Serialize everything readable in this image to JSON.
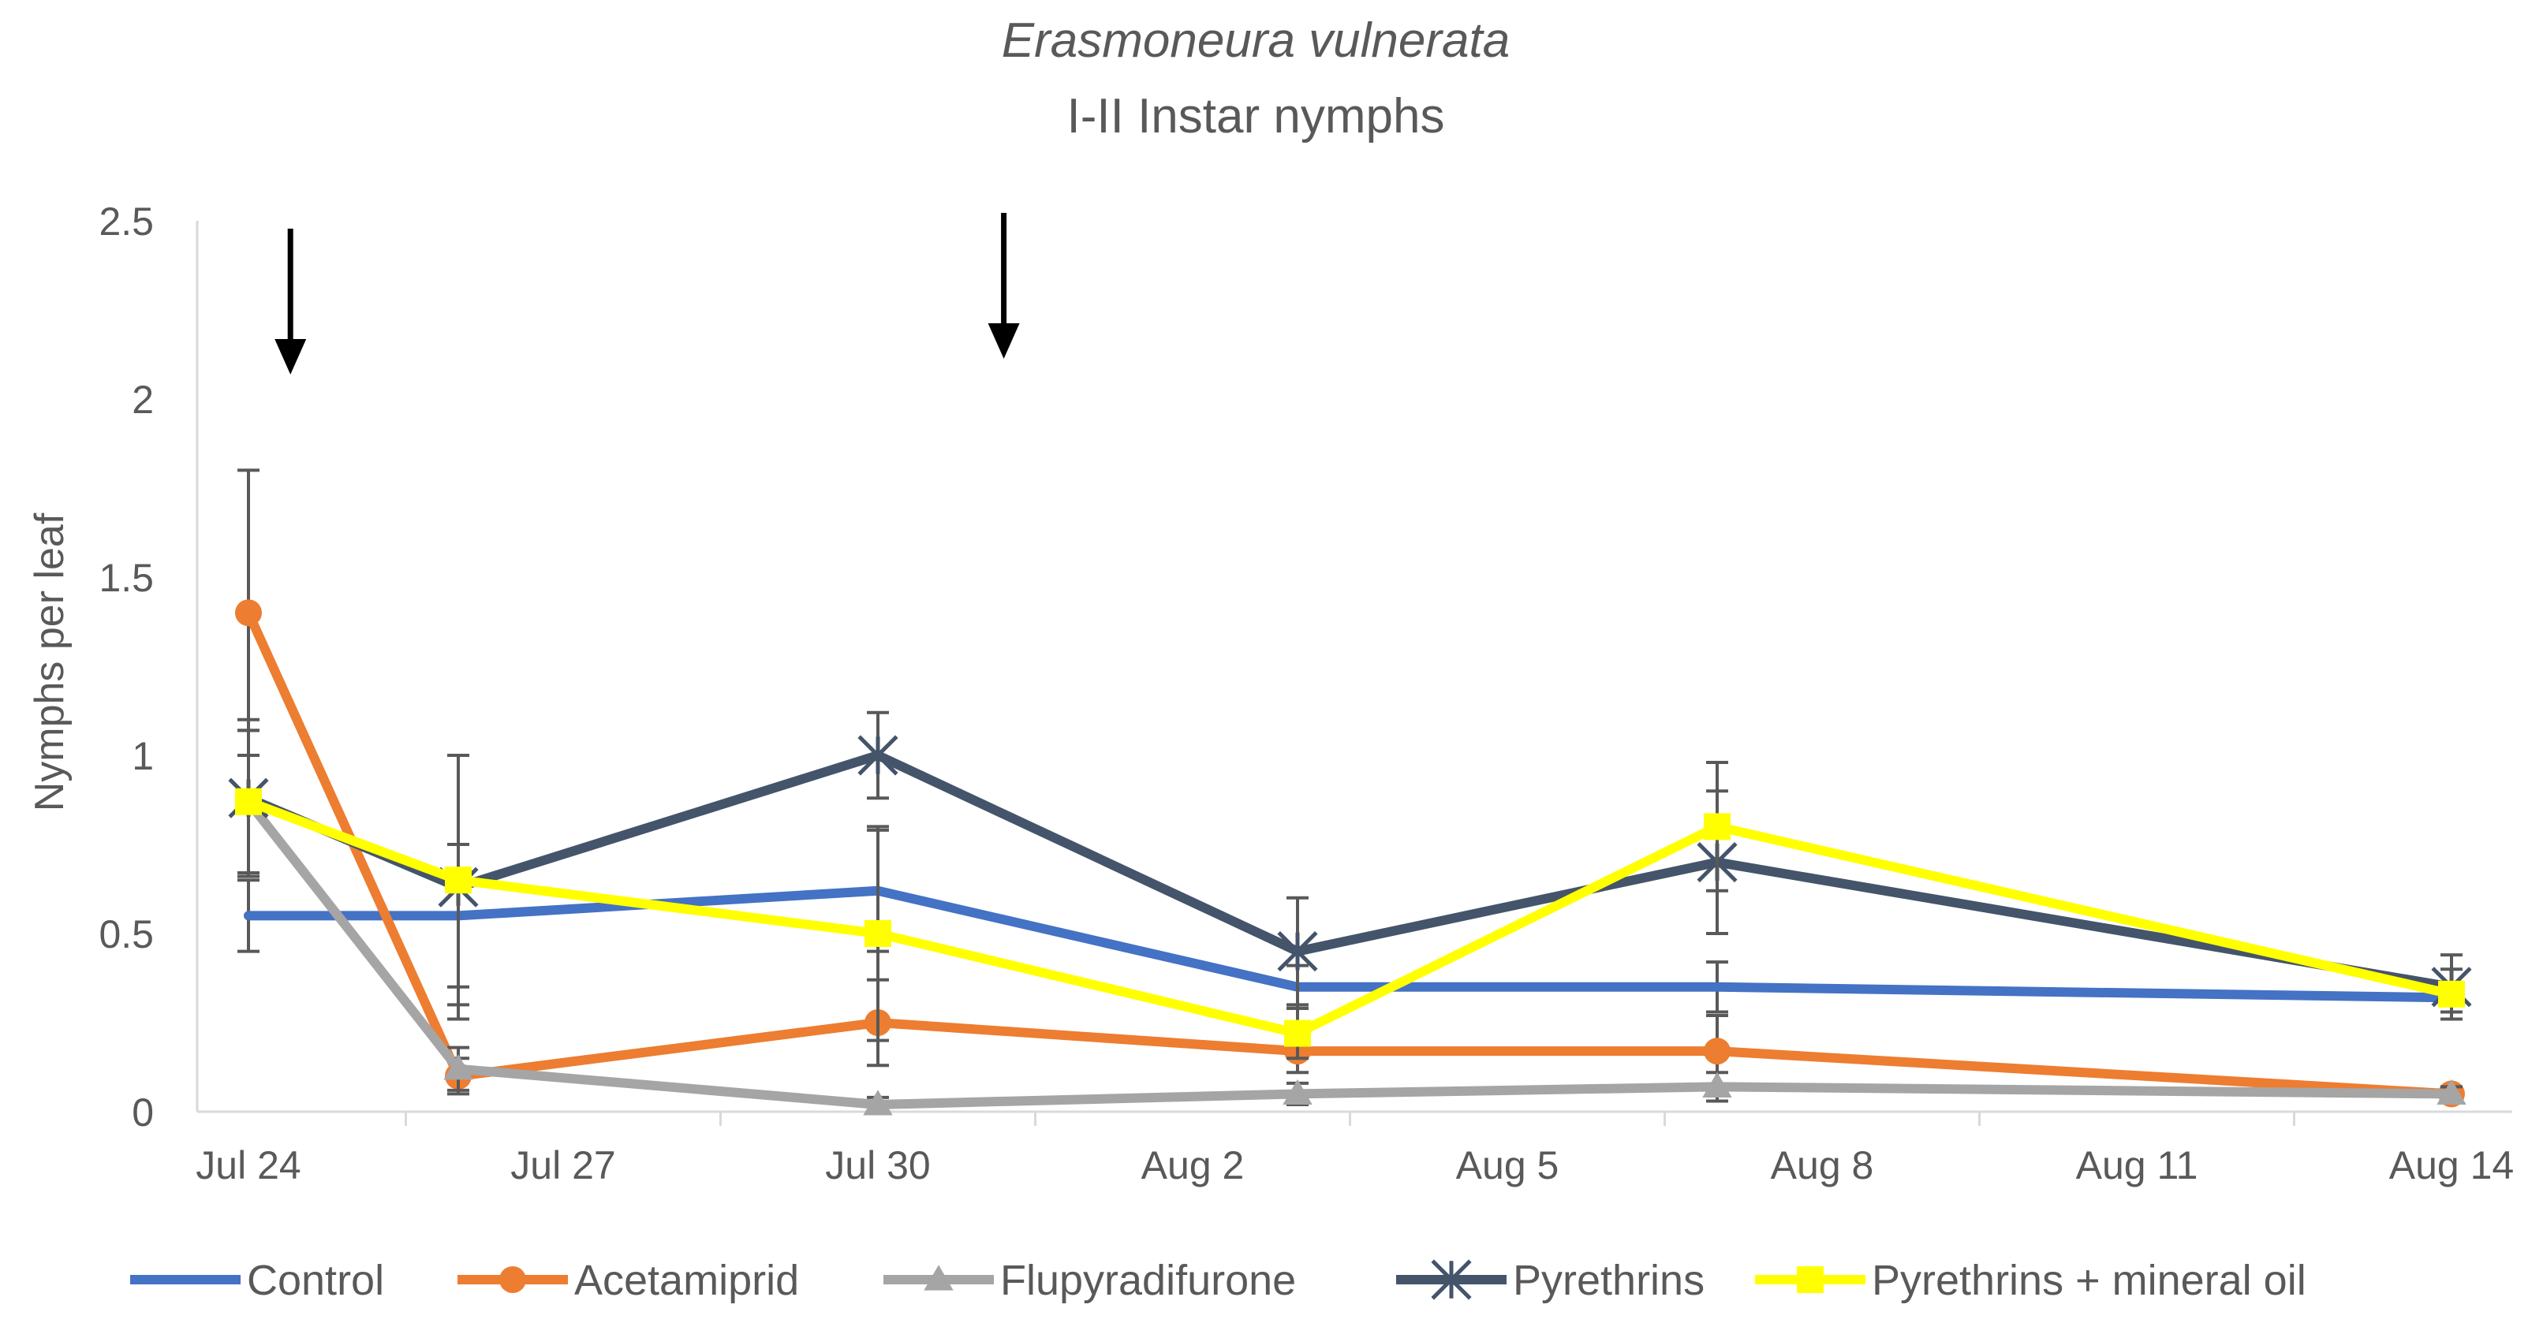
{
  "chart_data": {
    "type": "line",
    "title": "Erasmoneura vulnerata",
    "subtitle": "I-II Instar nymphs",
    "xlabel": "",
    "ylabel": "Nymphs per leaf",
    "ylim": [
      0,
      2.5
    ],
    "yticks": [
      "0",
      "0.5",
      "1",
      "1.5",
      "2",
      "2.5"
    ],
    "x_axis": {
      "start_day": 0,
      "end_day": 21
    },
    "xticks": [
      {
        "label": "Jul 24",
        "day": 0
      },
      {
        "label": "Jul 27",
        "day": 3
      },
      {
        "label": "Jul 30",
        "day": 6
      },
      {
        "label": "Aug 2",
        "day": 9
      },
      {
        "label": "Aug 5",
        "day": 12
      },
      {
        "label": "Aug 8",
        "day": 15
      },
      {
        "label": "Aug 11",
        "day": 18
      },
      {
        "label": "Aug 14",
        "day": 21
      }
    ],
    "sample_days": [
      0,
      2,
      6,
      10,
      14,
      21
    ],
    "application_days": [
      0.4,
      7.2
    ],
    "series": [
      {
        "name": "Control",
        "color": "#4472C4",
        "marker": "none",
        "values": [
          0.55,
          0.55,
          0.62,
          0.35,
          0.35,
          0.32
        ],
        "errors": [
          0.1,
          0.2,
          0.17,
          0.06,
          0.07,
          0.04
        ]
      },
      {
        "name": "Acetamiprid",
        "color": "#ED7D31",
        "marker": "circle",
        "values": [
          1.4,
          0.1,
          0.25,
          0.17,
          0.17,
          0.05
        ],
        "errors": [
          0.4,
          0.05,
          0.12,
          0.06,
          0.1,
          0.02
        ]
      },
      {
        "name": "Flupyradifurone",
        "color": "#A5A5A5",
        "marker": "triangle",
        "values": [
          0.87,
          0.12,
          0.02,
          0.05,
          0.07,
          0.05
        ],
        "errors": [
          0.2,
          0.06,
          0.02,
          0.03,
          0.04,
          0.02
        ]
      },
      {
        "name": "Pyrethrins",
        "color": "#44546A",
        "marker": "star",
        "values": [
          0.88,
          0.63,
          1.0,
          0.45,
          0.7,
          0.35
        ],
        "errors": [
          0.22,
          0.37,
          0.12,
          0.15,
          0.2,
          0.09
        ]
      },
      {
        "name": "Pyrethrins + mineral oil",
        "color": "#FFFF00",
        "marker": "square",
        "values": [
          0.87,
          0.65,
          0.5,
          0.22,
          0.8,
          0.33
        ],
        "errors": [
          0.2,
          0.35,
          0.3,
          0.07,
          0.18,
          0.07
        ]
      }
    ]
  }
}
